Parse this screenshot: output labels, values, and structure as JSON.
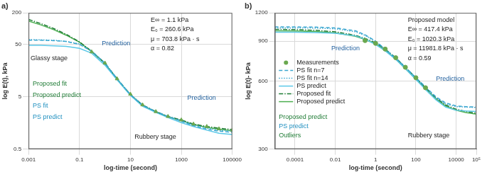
{
  "chart_data": [
    {
      "type": "line",
      "title": "a)",
      "x_label": "log-time (second)",
      "y_label": "log E(t), kPa",
      "log": true,
      "grid": true,
      "xlim": [
        0.001,
        100000
      ],
      "xticks": [
        0.001,
        0.1,
        10,
        1000,
        100000
      ],
      "ylim": [
        0.5,
        200
      ],
      "yticks": [
        0.5,
        5,
        50,
        200
      ],
      "x": [
        0.001,
        0.003,
        0.01,
        0.03,
        0.1,
        0.3,
        1,
        3,
        10,
        30,
        100,
        300,
        1000,
        3000,
        10000,
        30000,
        100000
      ],
      "series": [
        {
          "name": "Measurements",
          "type": "scatter",
          "marker": "triangle",
          "color": "#6aa84f",
          "values": [
            null,
            null,
            null,
            null,
            null,
            36,
            22,
            11,
            5.6,
            3.5,
            2.6,
            2.1,
            1.8,
            1.5,
            1.35,
            1.22,
            1.15
          ]
        },
        {
          "name": "PS fit n=7",
          "line_style": "dashed",
          "color": "#3aa6d0",
          "values": [
            60,
            60,
            59,
            57,
            50,
            37,
            22,
            11,
            5.5,
            3.4,
            2.6,
            2.1,
            1.7,
            1.4,
            1.2,
            1.1,
            1.05
          ]
        },
        {
          "name": "PS fit n=14",
          "line_style": "dotted",
          "color": "#3aa6d0",
          "values": [
            62,
            61,
            60,
            57,
            51,
            37.5,
            22,
            11,
            5.5,
            3.5,
            2.6,
            2.1,
            1.75,
            1.45,
            1.25,
            1.15,
            1.1
          ]
        },
        {
          "name": "PS predict",
          "line_style": "solid",
          "color": "#5bc8e8",
          "values": [
            48,
            48,
            47,
            46,
            42,
            34,
            20,
            10.5,
            5.3,
            3.3,
            2.5,
            2.0,
            1.6,
            1.35,
            1.15,
            1.0,
            0.95
          ]
        },
        {
          "name": "Proposed fit",
          "line_style": "dashdot",
          "color": "#1e7b34",
          "values": [
            150,
            125,
            100,
            78,
            56,
            37,
            22,
            11,
            5.5,
            3.5,
            2.6,
            2.1,
            1.8,
            1.5,
            1.35,
            1.25,
            1.18
          ]
        },
        {
          "name": "Proposed predict",
          "line_style": "solid",
          "color": "#4caf50",
          "values": [
            140,
            118,
            95,
            75,
            55,
            36.5,
            21.5,
            10.8,
            5.4,
            3.4,
            2.55,
            2.05,
            1.75,
            1.48,
            1.3,
            1.2,
            1.12
          ]
        }
      ],
      "annotations": [
        "E∞ = 1.1 kPa",
        "E₀ = 260.6 kPa",
        "μ = 703.8 kPa · s",
        "α = 0.82",
        "Glassy stage",
        "Prediction",
        "Prediction",
        "Rubbery stage",
        "Proposed fit",
        "Proposed predict",
        "PS fit",
        "PS predict"
      ]
    },
    {
      "type": "line",
      "title": "b)",
      "x_label": "log-time (second)",
      "y_label": "log E(t)- kPa",
      "log": true,
      "grid": true,
      "legend": "lower left",
      "xlim": [
        1e-05,
        100000
      ],
      "xticks": [
        0.0001,
        0.01,
        1,
        100,
        10000,
        {
          "value": 100000,
          "label": "10⁵"
        }
      ],
      "ylim": [
        300,
        1200
      ],
      "yticks": [
        300,
        600,
        900,
        1200
      ],
      "x": [
        1e-05,
        0.0001,
        0.001,
        0.01,
        0.1,
        0.3,
        1,
        3,
        10,
        30,
        100,
        300,
        1000,
        3000,
        10000,
        30000,
        100000
      ],
      "series": [
        {
          "name": "Measurements",
          "type": "scatter",
          "marker": "circle",
          "color": "#6aa84f",
          "values": [
            null,
            null,
            null,
            null,
            null,
            905,
            880,
            830,
            760,
            690,
            620,
            560,
            null,
            null,
            null,
            null,
            null
          ]
        },
        {
          "name": "PS fit n=7",
          "line_style": "dashed",
          "color": "#3aa6d0",
          "values": [
            1040,
            1040,
            1038,
            1030,
            1000,
            960,
            900,
            830,
            755,
            690,
            620,
            565,
            510,
            480,
            465,
            462,
            460
          ]
        },
        {
          "name": "PS fit n=14",
          "line_style": "dotted",
          "color": "#3aa6d0",
          "values": [
            1030,
            1030,
            1028,
            1020,
            990,
            955,
            895,
            828,
            757,
            690,
            620,
            563,
            505,
            475,
            462,
            460,
            458
          ]
        },
        {
          "name": "PS predict",
          "line_style": "solid",
          "color": "#5bc8e8",
          "values": [
            985,
            985,
            983,
            975,
            950,
            920,
            870,
            815,
            748,
            680,
            610,
            550,
            495,
            460,
            445,
            442,
            440
          ]
        },
        {
          "name": "Proposed fit",
          "line_style": "dashdot",
          "color": "#1e7b34",
          "values": [
            1015,
            1012,
            1005,
            990,
            955,
            925,
            885,
            830,
            760,
            690,
            620,
            560,
            505,
            470,
            450,
            440,
            432
          ]
        },
        {
          "name": "Proposed predict",
          "line_style": "solid",
          "color": "#4caf50",
          "values": [
            1000,
            998,
            992,
            978,
            945,
            915,
            875,
            820,
            750,
            680,
            612,
            555,
            500,
            465,
            445,
            435,
            428
          ]
        }
      ],
      "annotations": [
        "Proposed model",
        "E∞ = 417.4 kPa",
        "E₀ = 1020.3 kPa",
        "μ = 11981.8 kPa · s",
        "α = 0.59",
        "Prediction",
        "Prediction",
        "Rubbery stage",
        "Proposed predict",
        "PS predict",
        "Outliers"
      ]
    }
  ]
}
